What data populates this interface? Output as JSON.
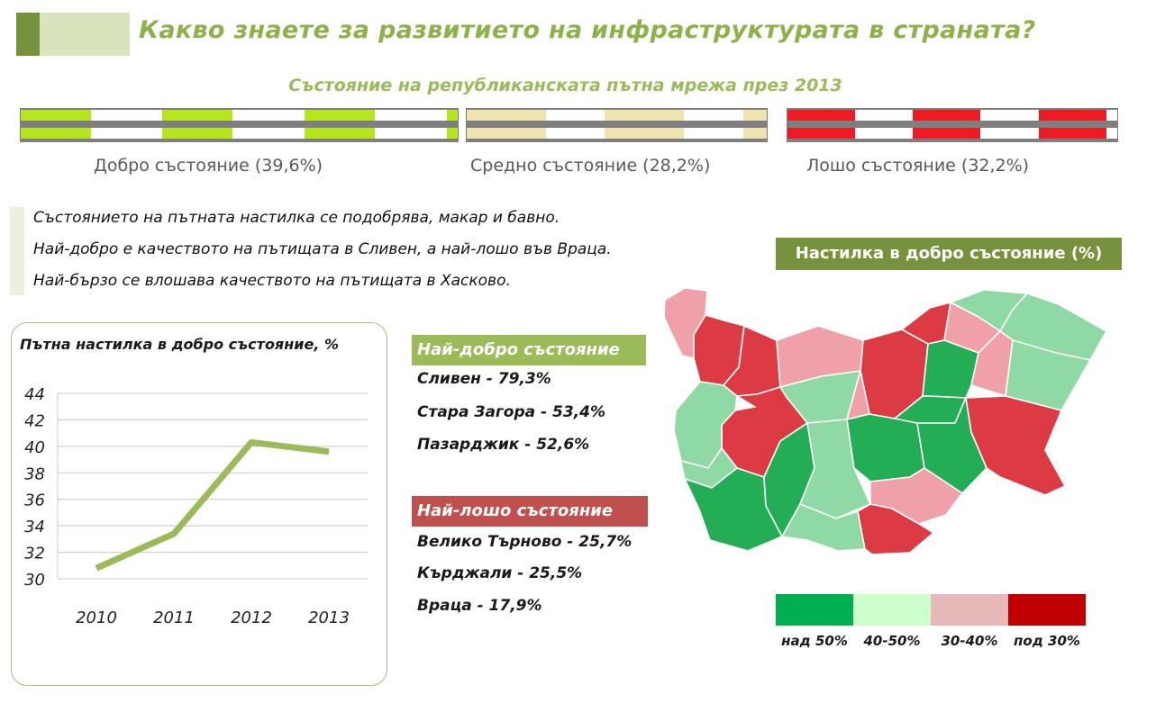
{
  "header": {
    "title": "Какво знаете за развитието на инфраструктурата в страната?",
    "subtitle": "Състояние на републиканската пътна мрежа през 2013"
  },
  "road_conditions": [
    {
      "label": "Добро състояние (39,6%)",
      "share": 39.6,
      "color": "#b5e61d"
    },
    {
      "label": "Средно състояние (28,2%)",
      "share": 28.2,
      "color": "#efe4b0"
    },
    {
      "label": "Лошо състояние (32,2%)",
      "share": 32.2,
      "color": "#ed1c24"
    }
  ],
  "findings": [
    "Състоянието на пътната настилка се подобрява, макар и бавно.",
    "Най-добро е качеството на пътищата в Сливен, а най-лошо във Враца.",
    "Най-бързо се влошава качеството на пътищата в Хасково."
  ],
  "chart_data": {
    "type": "line",
    "title": "Пътна настилка в добро състояние, %",
    "categories": [
      "2010",
      "2011",
      "2012",
      "2013"
    ],
    "values": [
      30.8,
      33.4,
      40.3,
      39.6
    ],
    "ylim": [
      30,
      44
    ],
    "yticks": [
      "30",
      "32",
      "34",
      "36",
      "38",
      "40",
      "42",
      "44"
    ],
    "grid": true,
    "color": "#9bbb59"
  },
  "best": {
    "title": "Най-добро състояние",
    "items": [
      "Сливен - 79,3%",
      "Стара Загора - 53,4%",
      "Пазарджик - 52,6%"
    ]
  },
  "worst": {
    "title": "Най-лошо състояние",
    "items": [
      "Велико Търново - 25,7%",
      "Кърджали - 25,5%",
      "Враца - 17,9%"
    ]
  },
  "map": {
    "title": "Настилка в добро състояние (%)",
    "legend": [
      {
        "label": "над 50%",
        "color": "#00b050"
      },
      {
        "label": "40-50%",
        "color": "#ccffcc"
      },
      {
        "label": "30-40%",
        "color": "#e6b8b7"
      },
      {
        "label": "под 30%",
        "color": "#c00000"
      }
    ]
  }
}
